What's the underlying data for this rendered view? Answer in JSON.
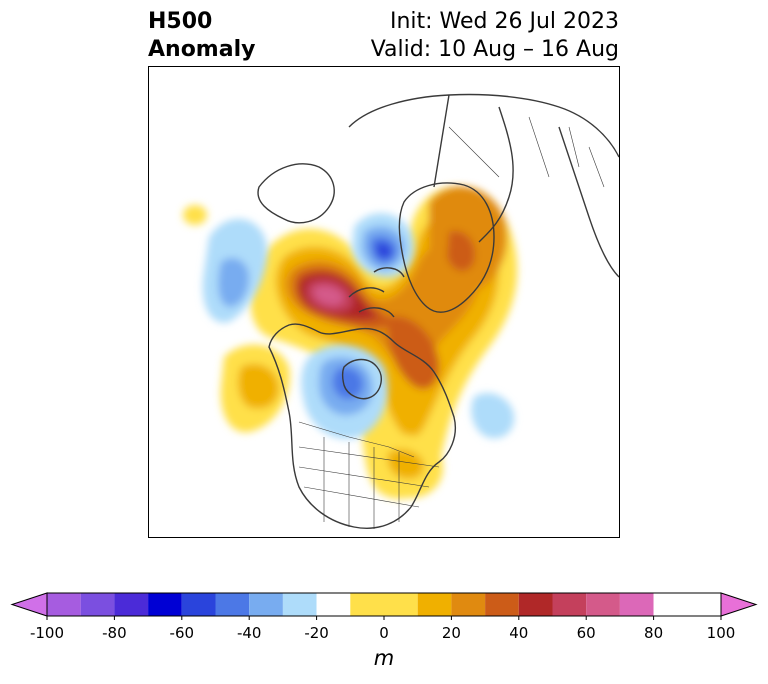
{
  "header": {
    "title_line1": "H500",
    "title_line2": "Anomaly",
    "init_text": "Init: Wed 26 Jul 2023",
    "valid_text": "Valid: 10 Aug – 16 Aug"
  },
  "colorbar": {
    "unit": "m",
    "min": -100,
    "max": 100,
    "tick_labels": [
      "-100",
      "-80",
      "-60",
      "-40",
      "-20",
      "0",
      "20",
      "40",
      "60",
      "80",
      "100"
    ],
    "levels": [
      -100,
      -90,
      -80,
      -70,
      -60,
      -50,
      -40,
      -30,
      -20,
      -10,
      10,
      20,
      30,
      40,
      50,
      60,
      70,
      80,
      90,
      100
    ],
    "bin_colors": [
      "#a65ce0",
      "#7b4fe0",
      "#4b2bd8",
      "#0000d4",
      "#2a44dc",
      "#4c78e6",
      "#78acf0",
      "#aedcfa",
      "#ffffff",
      "#ffe04a",
      "#f0b000",
      "#e08a10",
      "#cc5c18",
      "#b02828",
      "#c4405c",
      "#d45a8a",
      "#dc68b8"
    ],
    "under_color": "#d070e8",
    "over_color": "#e870d8"
  },
  "map": {
    "anomaly_centers": [
      {
        "label": "ridge",
        "value": 75
      },
      {
        "label": "trough",
        "value": -60
      },
      {
        "label": "trough",
        "value": -50
      },
      {
        "label": "ridge",
        "value": 45
      },
      {
        "label": "ridge",
        "value": 30
      }
    ]
  }
}
